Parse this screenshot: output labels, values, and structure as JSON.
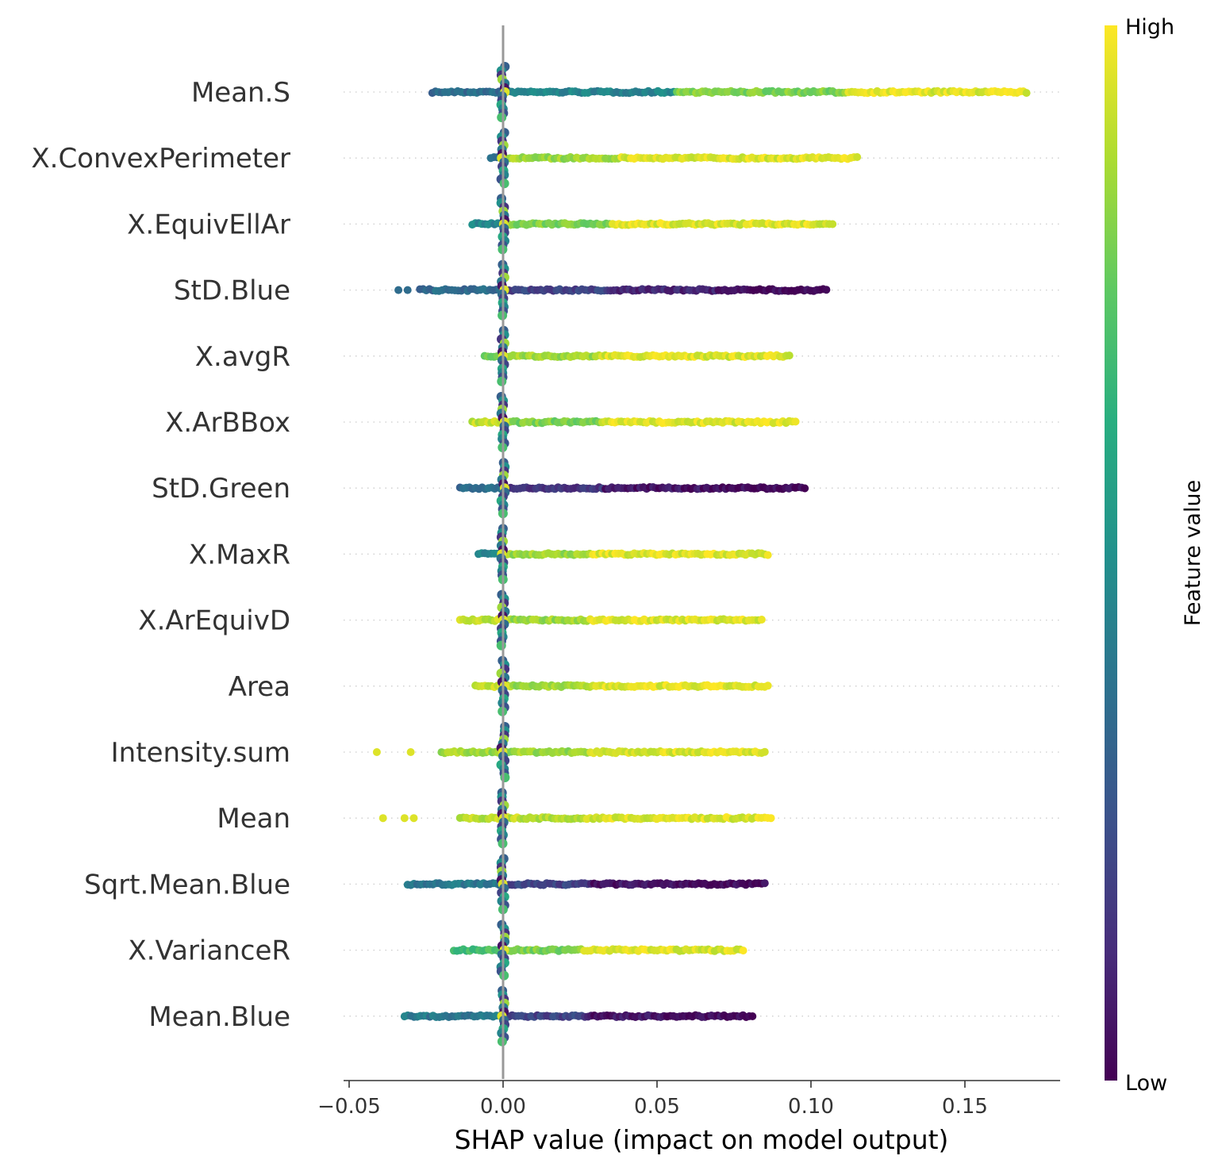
{
  "chart_data": {
    "type": "scatter",
    "subtype": "shap-beeswarm",
    "xlabel": "SHAP value (impact on model output)",
    "xlim": [
      -0.052,
      0.18
    ],
    "xticks": [
      -0.05,
      0.0,
      0.05,
      0.1,
      0.15
    ],
    "xtick_labels": [
      "−0.05",
      "0.00",
      "0.05",
      "0.10",
      "0.15"
    ],
    "colorbar": {
      "label": "Feature value",
      "high_label": "High",
      "low_label": "Low",
      "colormap": "viridis"
    },
    "colors": {
      "zero_line": "#999999",
      "axis": "#333333",
      "gridline": "#cccccc"
    },
    "features": [
      {
        "name": "Mean.S",
        "min": -0.023,
        "max": 0.17,
        "neg_color": 0.35,
        "pos_colors": [
          0.45,
          0.8,
          0.95
        ],
        "outliers": []
      },
      {
        "name": "X.ConvexPerimeter",
        "min": -0.004,
        "max": 0.115,
        "neg_color": 0.4,
        "pos_colors": [
          0.85,
          0.95,
          0.95
        ],
        "outliers": []
      },
      {
        "name": "X.EquivEllAr",
        "min": -0.01,
        "max": 0.107,
        "neg_color": 0.45,
        "pos_colors": [
          0.8,
          0.95,
          0.95
        ],
        "outliers": []
      },
      {
        "name": "StD.Blue",
        "min": -0.027,
        "max": 0.105,
        "neg_color": 0.35,
        "pos_colors": [
          0.2,
          0.1,
          0.02
        ],
        "outliers": [
          -0.034,
          -0.031
        ]
      },
      {
        "name": "X.avgR",
        "min": -0.006,
        "max": 0.093,
        "neg_color": 0.8,
        "pos_colors": [
          0.85,
          0.95,
          0.95
        ],
        "outliers": []
      },
      {
        "name": "X.ArBBox",
        "min": -0.01,
        "max": 0.095,
        "neg_color": 0.9,
        "pos_colors": [
          0.8,
          0.95,
          0.95
        ],
        "outliers": []
      },
      {
        "name": "StD.Green",
        "min": -0.014,
        "max": 0.098,
        "neg_color": 0.35,
        "pos_colors": [
          0.15,
          0.05,
          0.02
        ],
        "outliers": []
      },
      {
        "name": "X.MaxR",
        "min": -0.008,
        "max": 0.086,
        "neg_color": 0.45,
        "pos_colors": [
          0.85,
          0.95,
          0.95
        ],
        "outliers": []
      },
      {
        "name": "X.ArEquivD",
        "min": -0.014,
        "max": 0.084,
        "neg_color": 0.9,
        "pos_colors": [
          0.85,
          0.95,
          0.95
        ],
        "outliers": []
      },
      {
        "name": "Area",
        "min": -0.009,
        "max": 0.086,
        "neg_color": 0.9,
        "pos_colors": [
          0.85,
          0.95,
          0.95
        ],
        "outliers": []
      },
      {
        "name": "Intensity.sum",
        "min": -0.02,
        "max": 0.085,
        "neg_color": 0.85,
        "pos_colors": [
          0.85,
          0.95,
          0.95
        ],
        "outliers": [
          -0.041,
          -0.03
        ]
      },
      {
        "name": "Mean",
        "min": -0.014,
        "max": 0.087,
        "neg_color": 0.9,
        "pos_colors": [
          0.9,
          0.95,
          0.95
        ],
        "outliers": [
          -0.039,
          -0.032,
          -0.029
        ]
      },
      {
        "name": "Sqrt.Mean.Blue",
        "min": -0.031,
        "max": 0.085,
        "neg_color": 0.4,
        "pos_colors": [
          0.2,
          0.05,
          0.02
        ],
        "outliers": []
      },
      {
        "name": "X.VarianceR",
        "min": -0.016,
        "max": 0.078,
        "neg_color": 0.7,
        "pos_colors": [
          0.8,
          0.95,
          0.95
        ],
        "outliers": []
      },
      {
        "name": "Mean.Blue",
        "min": -0.032,
        "max": 0.081,
        "neg_color": 0.4,
        "pos_colors": [
          0.2,
          0.05,
          0.02
        ],
        "outliers": []
      }
    ]
  }
}
